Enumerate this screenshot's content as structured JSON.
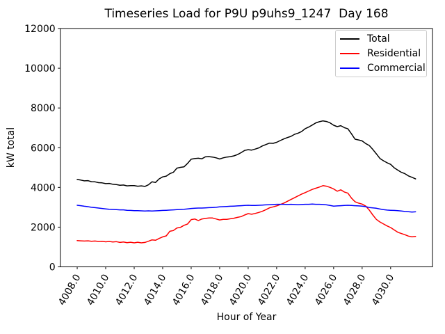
{
  "title": "Timeseries Load for P9U p9uhs9_1247  Day 168",
  "axes": {
    "xlabel": "Hour of Year",
    "ylabel": "kW total",
    "x_tick_labels": [
      "4008.0",
      "4010.0",
      "4012.0",
      "4014.0",
      "4016.0",
      "4018.0",
      "4020.0",
      "4022.0",
      "4024.0",
      "4026.0",
      "4028.0",
      "4030.0"
    ],
    "x_tick_values": [
      4008,
      4010,
      4012,
      4014,
      4016,
      4018,
      4020,
      4022,
      4024,
      4026,
      4028,
      4030
    ],
    "x_tick_rotation_deg": 60,
    "y_tick_labels": [
      "0",
      "2000",
      "4000",
      "6000",
      "8000",
      "10000",
      "12000"
    ],
    "y_tick_values": [
      0,
      2000,
      4000,
      6000,
      8000,
      10000,
      12000
    ],
    "xlim": [
      4006.8125,
      4032.9375
    ],
    "ylim": [
      0,
      12000
    ],
    "grid": false
  },
  "legend": {
    "position": "upper right",
    "entries": [
      {
        "label": "Total",
        "color": "#000000"
      },
      {
        "label": "Residential",
        "color": "#ff0000"
      },
      {
        "label": "Commercial",
        "color": "#0000ff"
      }
    ]
  },
  "chart_data": {
    "type": "line",
    "title": "Timeseries Load for P9U p9uhs9_1247  Day 168",
    "xlabel": "Hour of Year",
    "ylabel": "kW total",
    "xlim": [
      4006.8125,
      4032.9375
    ],
    "ylim": [
      0,
      12000
    ],
    "grid": false,
    "legend_position": "upper right",
    "x": [
      4008.0,
      4008.25,
      4008.5,
      4008.75,
      4009.0,
      4009.25,
      4009.5,
      4009.75,
      4010.0,
      4010.25,
      4010.5,
      4010.75,
      4011.0,
      4011.25,
      4011.5,
      4011.75,
      4012.0,
      4012.25,
      4012.5,
      4012.75,
      4013.0,
      4013.25,
      4013.5,
      4013.75,
      4014.0,
      4014.25,
      4014.5,
      4014.75,
      4015.0,
      4015.25,
      4015.5,
      4015.75,
      4016.0,
      4016.25,
      4016.5,
      4016.75,
      4017.0,
      4017.25,
      4017.5,
      4017.75,
      4018.0,
      4018.25,
      4018.5,
      4018.75,
      4019.0,
      4019.25,
      4019.5,
      4019.75,
      4020.0,
      4020.25,
      4020.5,
      4020.75,
      4021.0,
      4021.25,
      4021.5,
      4021.75,
      4022.0,
      4022.25,
      4022.5,
      4022.75,
      4023.0,
      4023.25,
      4023.5,
      4023.75,
      4024.0,
      4024.25,
      4024.5,
      4024.75,
      4025.0,
      4025.25,
      4025.5,
      4025.75,
      4026.0,
      4026.25,
      4026.5,
      4026.75,
      4027.0,
      4027.25,
      4027.5,
      4027.75,
      4028.0,
      4028.25,
      4028.5,
      4028.75,
      4029.0,
      4029.25,
      4029.5,
      4029.75,
      4030.0,
      4030.25,
      4030.5,
      4030.75,
      4031.0,
      4031.25,
      4031.5,
      4031.75
    ],
    "series": [
      {
        "name": "Total",
        "color": "#000000",
        "values": [
          4400,
          4370,
          4330,
          4340,
          4290,
          4280,
          4240,
          4230,
          4190,
          4200,
          4160,
          4140,
          4110,
          4120,
          4080,
          4090,
          4090,
          4060,
          4080,
          4050,
          4130,
          4280,
          4250,
          4430,
          4530,
          4570,
          4690,
          4760,
          4970,
          5010,
          5040,
          5210,
          5420,
          5450,
          5470,
          5440,
          5540,
          5550,
          5530,
          5490,
          5430,
          5490,
          5530,
          5550,
          5590,
          5650,
          5750,
          5860,
          5900,
          5880,
          5930,
          5990,
          6090,
          6160,
          6230,
          6220,
          6270,
          6360,
          6440,
          6510,
          6570,
          6670,
          6730,
          6810,
          6960,
          7040,
          7140,
          7250,
          7310,
          7350,
          7320,
          7250,
          7130,
          7060,
          7110,
          7010,
          6950,
          6700,
          6430,
          6390,
          6340,
          6210,
          6110,
          5910,
          5690,
          5460,
          5340,
          5240,
          5160,
          4990,
          4870,
          4760,
          4690,
          4580,
          4510,
          4430
        ]
      },
      {
        "name": "Residential",
        "color": "#ff0000",
        "values": [
          1320,
          1310,
          1300,
          1310,
          1290,
          1300,
          1280,
          1290,
          1260,
          1280,
          1250,
          1270,
          1230,
          1250,
          1220,
          1240,
          1210,
          1240,
          1210,
          1230,
          1290,
          1360,
          1340,
          1430,
          1510,
          1560,
          1790,
          1830,
          1960,
          1990,
          2090,
          2160,
          2380,
          2410,
          2330,
          2410,
          2440,
          2460,
          2460,
          2410,
          2360,
          2390,
          2390,
          2420,
          2450,
          2490,
          2530,
          2610,
          2680,
          2650,
          2690,
          2740,
          2800,
          2880,
          2970,
          3020,
          3070,
          3140,
          3210,
          3300,
          3390,
          3480,
          3570,
          3660,
          3740,
          3820,
          3900,
          3960,
          4020,
          4090,
          4060,
          4000,
          3920,
          3810,
          3880,
          3770,
          3710,
          3460,
          3280,
          3210,
          3160,
          3060,
          2860,
          2610,
          2390,
          2260,
          2160,
          2060,
          1980,
          1860,
          1740,
          1680,
          1620,
          1550,
          1510,
          1530
        ]
      },
      {
        "name": "Commercial",
        "color": "#0000ff",
        "values": [
          3100,
          3080,
          3050,
          3030,
          3000,
          2980,
          2960,
          2940,
          2920,
          2900,
          2890,
          2880,
          2870,
          2870,
          2850,
          2840,
          2830,
          2830,
          2820,
          2810,
          2820,
          2810,
          2820,
          2830,
          2840,
          2850,
          2860,
          2870,
          2880,
          2890,
          2900,
          2920,
          2940,
          2950,
          2960,
          2960,
          2970,
          2980,
          2990,
          3000,
          3020,
          3030,
          3040,
          3050,
          3060,
          3070,
          3080,
          3090,
          3100,
          3090,
          3090,
          3100,
          3110,
          3120,
          3130,
          3140,
          3150,
          3150,
          3150,
          3140,
          3150,
          3140,
          3130,
          3140,
          3150,
          3150,
          3160,
          3150,
          3150,
          3140,
          3120,
          3090,
          3060,
          3070,
          3080,
          3090,
          3100,
          3090,
          3080,
          3070,
          3060,
          3030,
          2990,
          2970,
          2950,
          2910,
          2880,
          2860,
          2850,
          2840,
          2830,
          2810,
          2790,
          2780,
          2760,
          2770
        ]
      }
    ]
  }
}
